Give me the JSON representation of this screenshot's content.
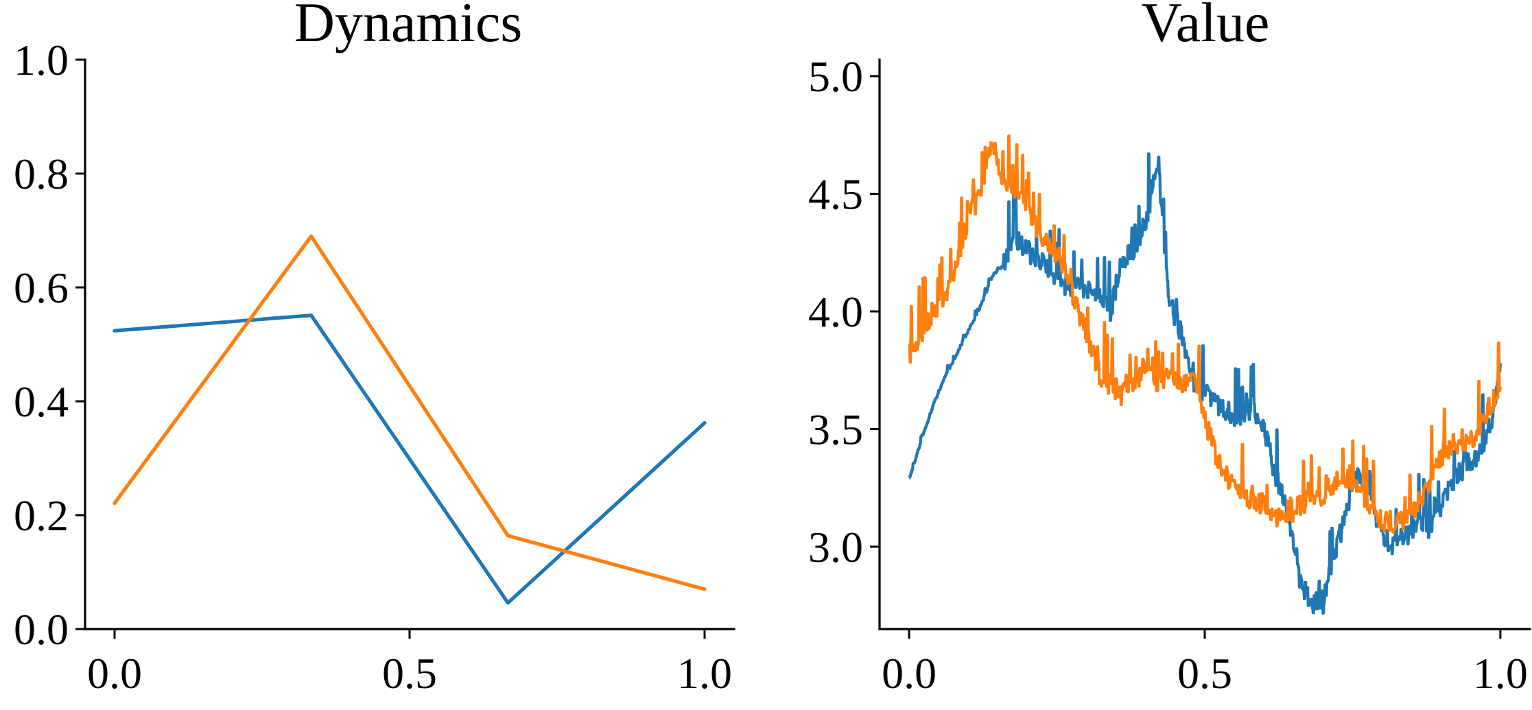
{
  "colors": {
    "blue": "#1f77b4",
    "orange": "#ff7f0e",
    "axis": "#000000",
    "background": "#ffffff"
  },
  "chart_data": [
    {
      "type": "line",
      "title": "Dynamics",
      "xlabel": "",
      "ylabel": "",
      "xlim": [
        -0.05,
        1.05
      ],
      "ylim": [
        0.0,
        1.0
      ],
      "xticks": [
        0.0,
        0.5,
        1.0
      ],
      "xtick_labels": [
        "0.0",
        "0.5",
        "1.0"
      ],
      "yticks": [
        0.0,
        0.2,
        0.4,
        0.6,
        0.8,
        1.0
      ],
      "ytick_labels": [
        "0.0",
        "0.2",
        "0.4",
        "0.6",
        "0.8",
        "1.0"
      ],
      "grid": false,
      "legend": "none",
      "spines": "left-bottom",
      "x": [
        0.0,
        0.3333,
        0.6667,
        1.0
      ],
      "series": [
        {
          "color": "#1f77b4",
          "values": [
            0.524,
            0.551,
            0.046,
            0.362
          ]
        },
        {
          "color": "#ff7f0e",
          "values": [
            0.221,
            0.69,
            0.164,
            0.07
          ]
        }
      ]
    },
    {
      "type": "line",
      "title": "Value",
      "xlabel": "",
      "ylabel": "",
      "xlim": [
        -0.05,
        1.05
      ],
      "ylim": [
        2.65,
        5.07
      ],
      "xticks": [
        0.0,
        0.5,
        1.0
      ],
      "xtick_labels": [
        "0.0",
        "0.5",
        "1.0"
      ],
      "yticks": [
        3.0,
        3.5,
        4.0,
        4.5,
        5.0
      ],
      "ytick_labels": [
        "3.0",
        "3.5",
        "4.0",
        "4.5",
        "5.0"
      ],
      "grid": false,
      "legend": "none",
      "spines": "left-bottom",
      "x": [
        0.0,
        0.02,
        0.04,
        0.06,
        0.08,
        0.1,
        0.12,
        0.14,
        0.16,
        0.18,
        0.2,
        0.22,
        0.24,
        0.26,
        0.28,
        0.3,
        0.32,
        0.34,
        0.36,
        0.38,
        0.4,
        0.42,
        0.44,
        0.46,
        0.48,
        0.5,
        0.52,
        0.54,
        0.56,
        0.58,
        0.6,
        0.62,
        0.64,
        0.66,
        0.68,
        0.7,
        0.72,
        0.74,
        0.76,
        0.78,
        0.8,
        0.82,
        0.84,
        0.86,
        0.88,
        0.9,
        0.92,
        0.94,
        0.96,
        0.98,
        1.0
      ],
      "series": [
        {
          "color": "#1f77b4",
          "values": [
            3.29,
            3.45,
            3.6,
            3.72,
            3.82,
            3.92,
            4.02,
            4.15,
            4.2,
            4.3,
            4.27,
            4.22,
            4.17,
            4.12,
            4.1,
            4.09,
            4.08,
            4.0,
            4.22,
            4.26,
            4.38,
            4.62,
            4.05,
            3.9,
            3.68,
            3.66,
            3.6,
            3.58,
            3.52,
            3.6,
            3.5,
            3.3,
            3.15,
            2.85,
            2.77,
            2.76,
            2.98,
            3.15,
            3.32,
            3.18,
            3.05,
            3.0,
            3.06,
            3.1,
            3.08,
            3.18,
            3.28,
            3.34,
            3.38,
            3.48,
            3.78
          ]
        },
        {
          "color": "#ff7f0e",
          "values": [
            3.82,
            3.9,
            4.0,
            4.05,
            4.2,
            4.4,
            4.52,
            4.72,
            4.56,
            4.5,
            4.45,
            4.32,
            4.28,
            4.2,
            4.05,
            3.9,
            3.75,
            3.7,
            3.65,
            3.7,
            3.76,
            3.68,
            3.74,
            3.7,
            3.72,
            3.55,
            3.38,
            3.28,
            3.22,
            3.2,
            3.18,
            3.12,
            3.15,
            3.18,
            3.2,
            3.22,
            3.28,
            3.3,
            3.25,
            3.15,
            3.12,
            3.1,
            3.14,
            3.18,
            3.28,
            3.38,
            3.42,
            3.44,
            3.48,
            3.58,
            3.68
          ]
        }
      ]
    }
  ]
}
